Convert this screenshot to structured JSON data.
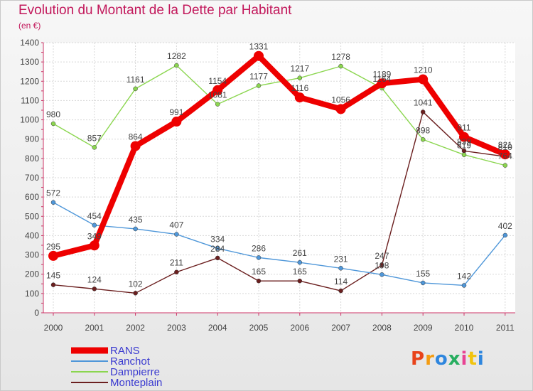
{
  "header": {
    "title": "Evolution du Montant de la Dette par Habitant",
    "subtitle": "(en €)"
  },
  "logo": {
    "text": "Proxiti"
  },
  "chart_data": {
    "type": "line",
    "title": "Evolution du Montant de la Dette par Habitant",
    "subtitle": "(en €)",
    "xlabel": "",
    "ylabel": "",
    "x": [
      "2000",
      "2001",
      "2002",
      "2003",
      "2004",
      "2005",
      "2006",
      "2007",
      "2008",
      "2009",
      "2010",
      "2011"
    ],
    "ylim": [
      0,
      1400
    ],
    "yticks": [
      0,
      100,
      200,
      300,
      400,
      500,
      600,
      700,
      800,
      900,
      1000,
      1100,
      1200,
      1300,
      1400
    ],
    "grid": true,
    "legend_position": "bottom-left",
    "series": [
      {
        "name": "RANS",
        "color": "#ee0000",
        "values": [
          295,
          349,
          864,
          991,
          1154,
          1331,
          1116,
          1056,
          1189,
          1210,
          911,
          821
        ]
      },
      {
        "name": "Ranchot",
        "color": "#4f97d9",
        "values": [
          572,
          454,
          435,
          407,
          334,
          286,
          261,
          231,
          198,
          155,
          142,
          402
        ]
      },
      {
        "name": "Dampierre",
        "color": "#8bd64f",
        "values": [
          980,
          857,
          1161,
          1282,
          1081,
          1177,
          1217,
          1278,
          1164,
          898,
          819,
          764
        ]
      },
      {
        "name": "Monteplain",
        "color": "#6b1f1f",
        "values": [
          145,
          124,
          102,
          211,
          284,
          165,
          165,
          114,
          247,
          1041,
          839,
          810
        ]
      }
    ]
  }
}
